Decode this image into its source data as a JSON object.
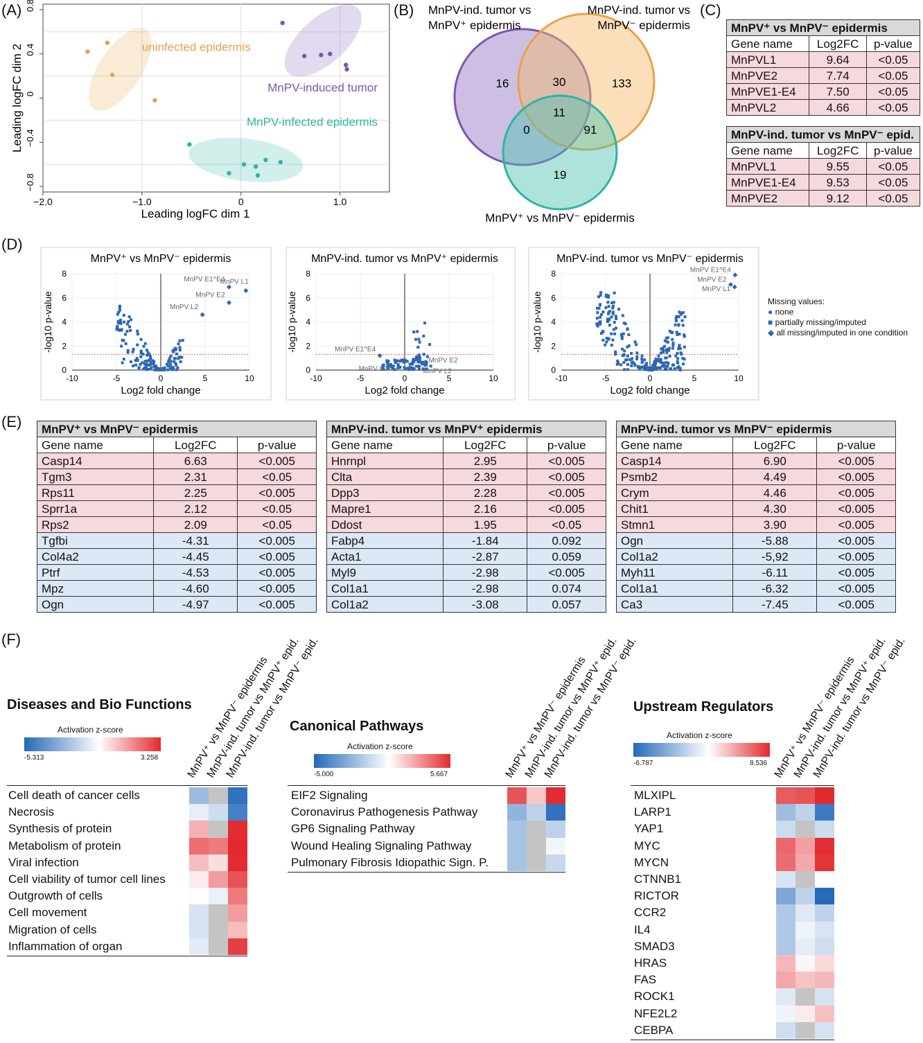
{
  "panelA": {
    "label": "(A)",
    "xlabel": "Leading logFC dim 1",
    "ylabel": "Leading logFC dim 2",
    "xticks": [
      "−2.0",
      "−1.0",
      "0",
      "1.0"
    ],
    "yticks": [
      "0.8",
      "0.4",
      "0",
      "−0.4",
      "−0.8"
    ],
    "groups": [
      {
        "name": "uninfected epidermis",
        "color": "#e8a24a"
      },
      {
        "name": "MnPV-induced tumor",
        "color": "#7d55b1"
      },
      {
        "name": "MnPV-infected epidermis",
        "color": "#2cb5a5"
      }
    ]
  },
  "panelB": {
    "label": "(B)",
    "set1": "MnPV-ind. tumor vs MnPV⁺ epidermis",
    "set1_l1": "MnPV-ind. tumor vs",
    "set1_l2": "MnPV⁺ epidermis",
    "set2_l1": "MnPV-ind. tumor vs",
    "set2_l2": "MnPV⁻ epidermis",
    "set3": "MnPV⁺ vs MnPV⁻ epidermis",
    "counts": {
      "only1": "16",
      "one_two": "30",
      "only2": "133",
      "all": "11",
      "one_three": "0",
      "two_three": "91",
      "only3": "19"
    }
  },
  "panelC": {
    "label": "(C)",
    "colheads": [
      "Gene name",
      "Log2FC",
      "p-value"
    ],
    "table1": {
      "title": "MnPV⁺ vs MnPV⁻ epidermis",
      "rows": [
        [
          "MnPVL1",
          "9.64",
          "<0.05"
        ],
        [
          "MnPVE2",
          "7.74",
          "<0.05"
        ],
        [
          "MnPVE1-E4",
          "7.50",
          "<0.05"
        ],
        [
          "MnPVL2",
          "4.66",
          "<0.05"
        ]
      ]
    },
    "table2": {
      "title": "MnPV-ind. tumor vs MnPV⁻ epid.",
      "rows": [
        [
          "MnPVL1",
          "9.55",
          "<0.05"
        ],
        [
          "MnPVE1-E4",
          "9.53",
          "<0.05"
        ],
        [
          "MnPVE2",
          "9.12",
          "<0.05"
        ]
      ]
    }
  },
  "panelD": {
    "label": "(D)",
    "xlabel": "Log2 fold change",
    "ylabel": "-log10 p-value",
    "xticks": [
      "-10",
      "-5",
      "0",
      "5",
      "10"
    ],
    "yticks": [
      "0",
      "2",
      "4",
      "6",
      "8"
    ],
    "plots": [
      {
        "title": "MnPV⁺ vs MnPV⁻ epidermis",
        "labels": [
          "MnPV E1^E4",
          "MnPV L1",
          "MnPV E2",
          "MnPV L2"
        ]
      },
      {
        "title": "MnPV-ind. tumor vs MnPV⁺ epidermis",
        "labels": [
          "MnPV E1^E4",
          "MnPV L2",
          "MnPV E2",
          "MnPV L2"
        ]
      },
      {
        "title": "MnPV-ind. tumor vs MnPV⁻ epidermis",
        "labels": [
          "MnPV E1^E4",
          "MnPV E2",
          "MnPV L1"
        ]
      }
    ],
    "legend": {
      "title": "Missing values:",
      "items": [
        "none",
        "partially missing/imputed",
        "all missing/imputed in one condition"
      ]
    }
  },
  "panelE": {
    "label": "(E)",
    "colheads": [
      "Gene name",
      "Log2FC",
      "p-value"
    ],
    "tables": [
      {
        "title": "MnPV⁺ vs MnPV⁻ epidermis",
        "rows": [
          [
            "Casp14",
            "6.63",
            "<0.005"
          ],
          [
            "Tgm3",
            "2.31",
            "<0.05"
          ],
          [
            "Rps11",
            "2.25",
            "<0.005"
          ],
          [
            "Sprr1a",
            "2.12",
            "<0.05"
          ],
          [
            "Rps2",
            "2.09",
            "<0.05"
          ],
          [
            "Tgfbi",
            "-4.31",
            "<0.005"
          ],
          [
            "Col4a2",
            "-4.45",
            "<0.005"
          ],
          [
            "Ptrf",
            "-4.53",
            "<0.005"
          ],
          [
            "Mpz",
            "-4.60",
            "<0.005"
          ],
          [
            "Ogn",
            "-4.97",
            "<0.005"
          ]
        ]
      },
      {
        "title": "MnPV-ind. tumor vs MnPV⁺ epidermis",
        "rows": [
          [
            "Hnrnpl",
            "2.95",
            "<0.005"
          ],
          [
            "Clta",
            "2.39",
            "<0.005"
          ],
          [
            "Dpp3",
            "2.28",
            "<0.005"
          ],
          [
            "Mapre1",
            "2.16",
            "<0.005"
          ],
          [
            "Ddost",
            "1.95",
            "<0.05"
          ],
          [
            "Fabp4",
            "-1.84",
            "0.092"
          ],
          [
            "Acta1",
            "-2.87",
            "0.059"
          ],
          [
            "Myl9",
            "-2.98",
            "<0.005"
          ],
          [
            "Col1a1",
            "-2.98",
            "0.074"
          ],
          [
            "Col1a2",
            "-3.08",
            "0.057"
          ]
        ]
      },
      {
        "title": "MnPV-ind. tumor vs MnPV⁻ epidermis",
        "rows": [
          [
            "Casp14",
            "6.90",
            "<0.005"
          ],
          [
            "Psmb2",
            "4.49",
            "<0.005"
          ],
          [
            "Crym",
            "4.46",
            "<0.005"
          ],
          [
            "Chit1",
            "4.30",
            "<0.005"
          ],
          [
            "Stmn1",
            "3.90",
            "<0.005"
          ],
          [
            "Ogn",
            "-5.88",
            "<0.005"
          ],
          [
            "Col1a2",
            "-5,92",
            "<0.005"
          ],
          [
            "Myh11",
            "-6.11",
            "<0.005"
          ],
          [
            "Col1a1",
            "-6.32",
            "<0.005"
          ],
          [
            "Ca3",
            "-7.45",
            "<0.005"
          ]
        ]
      }
    ]
  },
  "panelF": {
    "label": "(F)",
    "legend_title": "Activation z-score",
    "colnames": [
      "MnPV⁺ vs MnPV⁻ epidermis",
      "MnPV-ind. tumor vs MnPV⁺ epid.",
      "MnPV-ind. tumor vs MnPV⁻ epid."
    ],
    "blocks": [
      {
        "title": "Diseases and Bio Functions",
        "min": "-5.313",
        "max": "3.258",
        "rows": [
          "Cell death of cancer cells",
          "Necrosis",
          "Synthesis of protein",
          "Metabolism of protein",
          "Viral infection",
          "Cell viability of tumor cell lines",
          "Outgrowth of cells",
          "Cell movement",
          "Migration of cells",
          "Inflammation of organ"
        ],
        "values": [
          [
            -2.4,
            null,
            -5.0
          ],
          [
            -0.6,
            -1.2,
            -4.5
          ],
          [
            1.2,
            null,
            3.2
          ],
          [
            2.2,
            2.0,
            3.25
          ],
          [
            1.0,
            0.5,
            3.2
          ],
          [
            0.3,
            1.5,
            2.6
          ],
          [
            0.05,
            -0.5,
            2.0
          ],
          [
            -1.0,
            null,
            1.5
          ],
          [
            -1.0,
            null,
            1.0
          ],
          [
            -0.7,
            null,
            2.9
          ]
        ]
      },
      {
        "title": "Canonical Pathways",
        "min": "-5.000",
        "max": "5.667",
        "rows": [
          "EIF2 Signaling",
          "Coronavirus Pathogenesis Pathway",
          "GP6 Signaling Pathway",
          "Wound Healing Signaling Pathway",
          "Pulmonary Fibrosis Idiopathic Sign. P."
        ],
        "values": [
          [
            4.5,
            1.5,
            5.6
          ],
          [
            -2.5,
            -1.5,
            -4.7
          ],
          [
            -2.0,
            null,
            -1.5
          ],
          [
            -2.0,
            null,
            -0.3
          ],
          [
            -2.0,
            null,
            -1.3
          ]
        ]
      },
      {
        "title": "Upstream Regulators",
        "min": "-6.787",
        "max": "8.536",
        "rows": [
          "MLXIPL",
          "LARP1",
          "YAP1",
          "MYC",
          "MYCN",
          "CTNNB1",
          "RICTOR",
          "CCR2",
          "IL4",
          "SMAD3",
          "HRAS",
          "FAS",
          "ROCK1",
          "NFE2L2",
          "CEBPA"
        ],
        "values": [
          [
            6.5,
            6.8,
            8.5
          ],
          [
            -3.0,
            -2.0,
            -6.0
          ],
          [
            -1.6,
            null,
            -1.6
          ],
          [
            6.0,
            3.8,
            8.3
          ],
          [
            5.8,
            3.4,
            8.0
          ],
          [
            -1.2,
            null,
            -0.2
          ],
          [
            -4.0,
            -2.0,
            -6.7
          ],
          [
            -2.5,
            -1.0,
            -2.0
          ],
          [
            -2.5,
            -0.5,
            -1.2
          ],
          [
            -2.5,
            -0.8,
            -1.5
          ],
          [
            2.8,
            0.4,
            1.5
          ],
          [
            3.5,
            2.4,
            2.8
          ],
          [
            -1.0,
            null,
            -1.3
          ],
          [
            -0.5,
            0.8,
            2.5
          ],
          [
            -1.5,
            null,
            -1.3
          ]
        ]
      }
    ]
  }
}
